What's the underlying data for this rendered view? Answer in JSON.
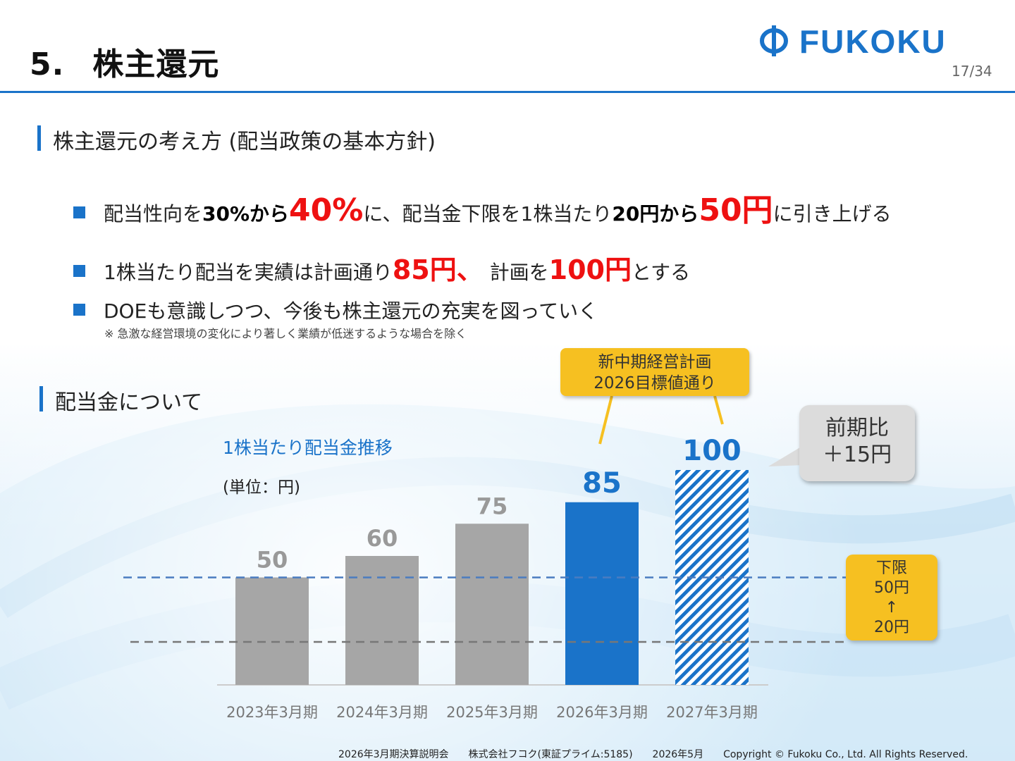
{
  "header": {
    "title_num": "5.",
    "title": "株主還元",
    "logo_text": "FUKOKU",
    "page": "17/34"
  },
  "section1": {
    "heading": "株主還元の考え方 (配当政策の基本方針)",
    "bullet1": {
      "a": "配当性向を",
      "b": "30%から",
      "c": "40%",
      "d": "に、配当金下限を1株当たり",
      "e": "20円から",
      "f": "50円",
      "g": "に引き上げる"
    },
    "bullet2": {
      "a": "1株当たり配当を実績は計画通り",
      "b": "85円、",
      "c": " 計画を",
      "d": "100円",
      "e": "とする"
    },
    "bullet3": "DOEも意識しつつ、今後も株主還元の充実を図っていく",
    "note": "※ 急激な経営環境の変化により著しく業績が低迷するような場合を除く"
  },
  "section2": {
    "heading": "配当金について"
  },
  "callout": {
    "line1": "新中期経営計画",
    "line2": "2026目標値通り"
  },
  "bubble": {
    "line1": "前期比",
    "line2": "＋15円"
  },
  "floor_box": {
    "line1": "下限",
    "line2": "50円",
    "line3": "↑",
    "line4": "20円"
  },
  "colors": {
    "accent": "#1a73c9",
    "gray_bar": "#a6a6a6",
    "highlight": "#f6c021",
    "red": "#ee1111"
  },
  "chart_data": {
    "type": "bar",
    "title": "1株当たり配当金推移",
    "unit_label": "(単位：円)",
    "categories": [
      "2023年3月期",
      "2024年3月期",
      "2025年3月期",
      "2026年3月期",
      "2027年3月期"
    ],
    "values": [
      50,
      60,
      75,
      85,
      100
    ],
    "value_labels": [
      "50",
      "60",
      "75",
      "85",
      "100"
    ],
    "bar_styles": [
      "gray",
      "gray",
      "gray",
      "blue",
      "hatched-blue"
    ],
    "reference_lines": [
      {
        "value": 50,
        "style": "dashed-blue"
      },
      {
        "value": 20,
        "style": "dashed-gray"
      }
    ],
    "ylim": [
      0,
      110
    ]
  },
  "footer": {
    "event": "2026年3月期決算説明会",
    "company": "株式会社フコク(東証プライム:5185)",
    "date": "2026年5月",
    "copyright": "Copyright © Fukoku Co., Ltd.  All Rights Reserved."
  }
}
